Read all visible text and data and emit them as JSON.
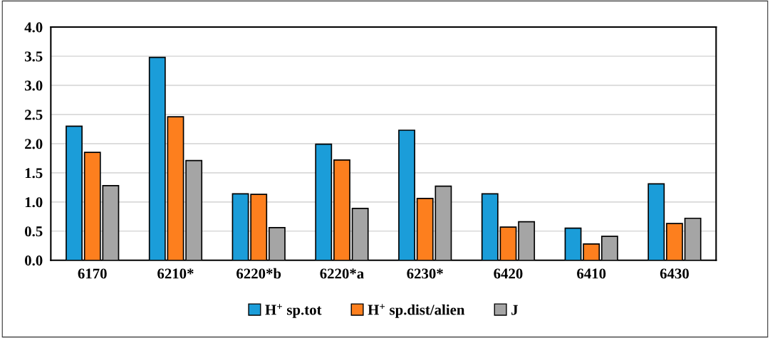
{
  "chart_data": {
    "type": "bar",
    "categories": [
      "6170",
      "6210*",
      "6220*b",
      "6220*a",
      "6230*",
      "6420",
      "6410",
      "6430"
    ],
    "series": [
      {
        "name": "H$^{+}$ sp.tot",
        "color": "#1b9dd9",
        "values": [
          2.3,
          3.48,
          1.14,
          1.99,
          2.23,
          1.14,
          0.55,
          1.31
        ]
      },
      {
        "name": "H$^{+}$ sp.dist/alien",
        "color": "#fd7f1e",
        "values": [
          1.85,
          2.46,
          1.13,
          1.72,
          1.06,
          0.57,
          0.28,
          0.63
        ]
      },
      {
        "name": "J",
        "color": "#a5a5a5",
        "values": [
          1.28,
          1.71,
          0.56,
          0.89,
          1.27,
          0.66,
          0.41,
          0.72
        ]
      }
    ],
    "ylim": [
      0,
      4.0
    ],
    "yticks": [
      {
        "value": 0,
        "label": "0.0"
      },
      {
        "value": 0.5,
        "label": "0.5"
      },
      {
        "value": 1.0,
        "label": "1.0"
      },
      {
        "value": 1.5,
        "label": "1.5"
      },
      {
        "value": 2.0,
        "label": "2.0"
      },
      {
        "value": 2.5,
        "label": "2.5"
      },
      {
        "value": 3.0,
        "label": "3.0"
      },
      {
        "value": 3.5,
        "label": "3.5"
      },
      {
        "value": 4.0,
        "label": "4.0"
      }
    ],
    "grid": "y",
    "legend": "bottom"
  }
}
